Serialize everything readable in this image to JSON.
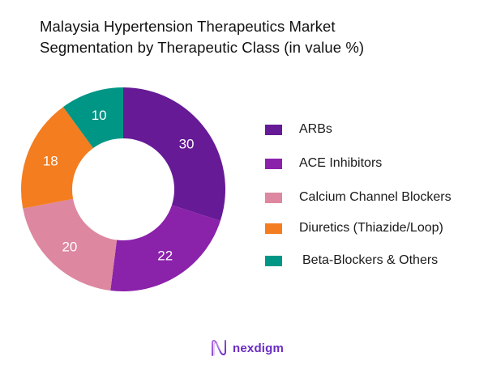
{
  "title": {
    "line1": "Malaysia Hypertension Therapeutics Market",
    "line2": "Segmentation by Therapeutic Class (in value %)"
  },
  "chart_data": {
    "type": "pie",
    "subtype": "donut",
    "title": "Malaysia Hypertension Therapeutics Market Segmentation by Therapeutic Class (in value %)",
    "categories": [
      "ARBs",
      "ACE Inhibitors",
      "Calcium Channel Blockers",
      "Diuretics (Thiazide/Loop)",
      "Beta-Blockers & Others"
    ],
    "values": [
      30,
      22,
      20,
      18,
      10
    ],
    "colors": [
      "#661a96",
      "#8a22aa",
      "#dd87a0",
      "#f47d20",
      "#009685"
    ],
    "data_labels": [
      "30",
      "22",
      "20",
      "18",
      "10"
    ],
    "legend_position": "right",
    "unit": "%"
  },
  "legend": {
    "items": [
      {
        "label": "ARBs",
        "color": "#661a96"
      },
      {
        "label": "ACE Inhibitors",
        "color": "#8a22aa"
      },
      {
        "label": "Calcium Channel Blockers",
        "color": "#dd87a0"
      },
      {
        "label": "Diuretics (Thiazide/Loop)",
        "color": "#f47d20"
      },
      {
        "label": "Beta-Blockers & Others",
        "color": "#009685"
      }
    ]
  },
  "brand": {
    "name": "nexdigm",
    "icon": "nexdigm-logo-icon"
  }
}
